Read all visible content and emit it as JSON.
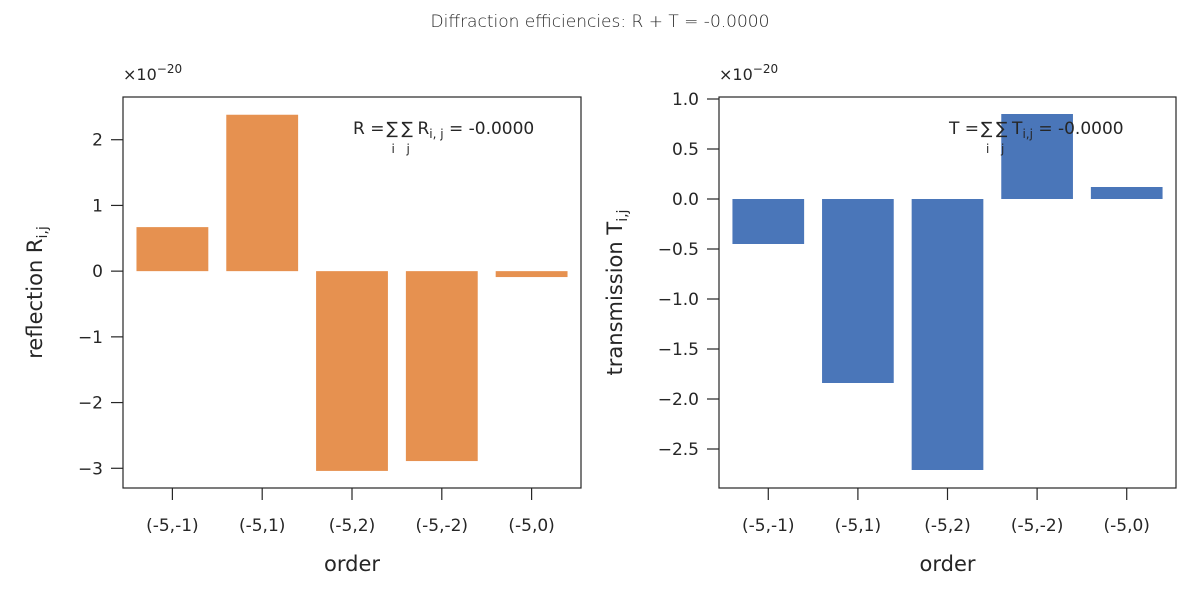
{
  "figure": {
    "suptitle": "Diffraction efficiencies: R + T = -0.0000"
  },
  "chart_data": [
    {
      "type": "bar",
      "title": "",
      "xlabel": "order",
      "ylabel": "reflection R",
      "ylabel_subscript": "i,j",
      "offset_text": "×10",
      "offset_exponent": "−20",
      "scale": 1e-20,
      "categories": [
        "(-5,-1)",
        "(-5,1)",
        "(-5,2)",
        "(-5,-2)",
        "(-5,0)"
      ],
      "values": [
        0.67,
        2.38,
        -3.04,
        -2.89,
        -0.09
      ],
      "ylim": [
        -3.3,
        2.65
      ],
      "yticks": [
        2,
        1,
        0,
        -1,
        -2,
        -3
      ],
      "ytick_labels": [
        "2",
        "1",
        "0",
        "−1",
        "−2",
        "−3"
      ],
      "color": "#e69150",
      "grid": false,
      "annotation": {
        "lhs": "R = ",
        "sum1": "i",
        "sum2": "j",
        "sym": "R",
        "sub": "i, j",
        "rhs": " = -0.0000"
      }
    },
    {
      "type": "bar",
      "title": "",
      "xlabel": "order",
      "ylabel": "transmission T",
      "ylabel_subscript": "i,j",
      "offset_text": "×10",
      "offset_exponent": "−20",
      "scale": 1e-20,
      "categories": [
        "(-5,-1)",
        "(-5,1)",
        "(-5,2)",
        "(-5,-2)",
        "(-5,0)"
      ],
      "values": [
        -0.45,
        -1.84,
        -2.71,
        0.85,
        0.12
      ],
      "ylim": [
        -2.89,
        1.02
      ],
      "yticks": [
        1.0,
        0.5,
        0.0,
        -0.5,
        -1.0,
        -1.5,
        -2.0,
        -2.5
      ],
      "ytick_labels": [
        "1.0",
        "0.5",
        "0.0",
        "−0.5",
        "−1.0",
        "−1.5",
        "−2.0",
        "−2.5"
      ],
      "color": "#4a76b9",
      "grid": false,
      "annotation": {
        "lhs": "T = ",
        "sum1": "i",
        "sum2": "j",
        "sym": "T",
        "sub": "i,j",
        "rhs": " = -0.0000"
      }
    }
  ]
}
